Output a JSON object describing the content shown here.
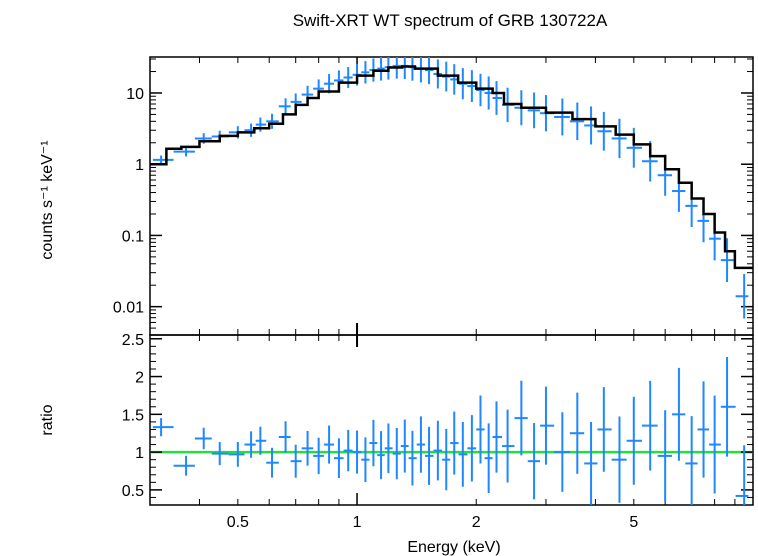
{
  "chart_data": [
    {
      "panel": "spectrum",
      "type": "scatter",
      "title": "Swift-XRT WT spectrum of GRB 130722A",
      "xlabel": "Energy (keV)",
      "ylabel": "counts s⁻¹ keV⁻¹",
      "xscale": "log",
      "yscale": "log",
      "xlim": [
        0.3,
        10
      ],
      "ylim": [
        0.004,
        32
      ],
      "yticks": [
        0.01,
        0.1,
        1,
        10
      ],
      "ytick_labels": [
        "0.01",
        "0.1",
        "1",
        "10"
      ],
      "series": [
        {
          "name": "data",
          "color": "#1f87ff",
          "style": "error-cross",
          "points": [
            {
              "x": 0.32,
              "y": 1.15
            },
            {
              "x": 0.37,
              "y": 1.5
            },
            {
              "x": 0.41,
              "y": 2.3
            },
            {
              "x": 0.45,
              "y": 2.45
            },
            {
              "x": 0.5,
              "y": 2.8
            },
            {
              "x": 0.54,
              "y": 3.0
            },
            {
              "x": 0.57,
              "y": 3.6
            },
            {
              "x": 0.61,
              "y": 4.0
            },
            {
              "x": 0.66,
              "y": 6.5
            },
            {
              "x": 0.7,
              "y": 7.5
            },
            {
              "x": 0.75,
              "y": 9.5
            },
            {
              "x": 0.8,
              "y": 11.5
            },
            {
              "x": 0.85,
              "y": 13.5
            },
            {
              "x": 0.9,
              "y": 15
            },
            {
              "x": 0.95,
              "y": 16.5
            },
            {
              "x": 1.0,
              "y": 18
            },
            {
              "x": 1.05,
              "y": 19.5
            },
            {
              "x": 1.1,
              "y": 21
            },
            {
              "x": 1.15,
              "y": 22
            },
            {
              "x": 1.2,
              "y": 23
            },
            {
              "x": 1.26,
              "y": 24
            },
            {
              "x": 1.32,
              "y": 24
            },
            {
              "x": 1.38,
              "y": 23
            },
            {
              "x": 1.45,
              "y": 22
            },
            {
              "x": 1.52,
              "y": 21
            },
            {
              "x": 1.6,
              "y": 18.5
            },
            {
              "x": 1.68,
              "y": 17
            },
            {
              "x": 1.76,
              "y": 15.5
            },
            {
              "x": 1.85,
              "y": 13.5
            },
            {
              "x": 1.95,
              "y": 12.5
            },
            {
              "x": 2.05,
              "y": 11
            },
            {
              "x": 2.15,
              "y": 10
            },
            {
              "x": 2.25,
              "y": 8.5
            },
            {
              "x": 2.4,
              "y": 6.8
            },
            {
              "x": 2.6,
              "y": 6.2
            },
            {
              "x": 2.8,
              "y": 5.7
            },
            {
              "x": 3.0,
              "y": 5.2
            },
            {
              "x": 3.3,
              "y": 4.6
            },
            {
              "x": 3.6,
              "y": 4.0
            },
            {
              "x": 3.9,
              "y": 3.5
            },
            {
              "x": 4.2,
              "y": 2.9
            },
            {
              "x": 4.6,
              "y": 2.3
            },
            {
              "x": 5.0,
              "y": 1.7
            },
            {
              "x": 5.5,
              "y": 1.1
            },
            {
              "x": 6.0,
              "y": 0.7
            },
            {
              "x": 6.5,
              "y": 0.42
            },
            {
              "x": 7.0,
              "y": 0.26
            },
            {
              "x": 7.5,
              "y": 0.16
            },
            {
              "x": 8.0,
              "y": 0.09
            },
            {
              "x": 8.6,
              "y": 0.045
            },
            {
              "x": 9.5,
              "y": 0.014
            }
          ]
        },
        {
          "name": "model",
          "color": "#000000",
          "style": "step-line",
          "x": [
            0.3,
            0.33,
            0.36,
            0.4,
            0.45,
            0.5,
            0.55,
            0.6,
            0.65,
            0.7,
            0.75,
            0.8,
            0.9,
            1.0,
            1.1,
            1.2,
            1.3,
            1.4,
            1.6,
            1.8,
            2.0,
            2.2,
            2.35,
            2.6,
            3.0,
            3.5,
            4.0,
            4.5,
            5.0,
            5.5,
            6.0,
            6.5,
            7.0,
            7.5,
            8.0,
            8.5,
            9.0,
            10.0
          ],
          "y": [
            1.0,
            1.65,
            1.75,
            2.1,
            2.5,
            2.8,
            3.2,
            3.7,
            5.0,
            6.8,
            8.5,
            10.5,
            14.0,
            17.5,
            20.5,
            22.8,
            23.5,
            22.0,
            17.5,
            14.0,
            11.5,
            10.0,
            7.0,
            6.2,
            5.3,
            4.3,
            3.4,
            2.6,
            1.9,
            1.3,
            0.85,
            0.55,
            0.33,
            0.2,
            0.11,
            0.06,
            0.035,
            0.035
          ]
        }
      ]
    },
    {
      "panel": "ratio",
      "type": "scatter",
      "xlabel": "Energy (keV)",
      "ylabel": "ratio",
      "xscale": "log",
      "xlim": [
        0.3,
        10
      ],
      "ylim": [
        0.3,
        2.55
      ],
      "yticks": [
        0.5,
        1,
        1.5,
        2,
        2.5
      ],
      "ytick_labels": [
        "0.5",
        "1",
        "1.5",
        "2",
        "2.5"
      ],
      "xticks": [
        0.5,
        1,
        2,
        5
      ],
      "xtick_labels": [
        "0.5",
        "1",
        "2",
        "5"
      ],
      "reference_line": {
        "y": 1,
        "color": "#22e03a"
      },
      "series": [
        {
          "name": "ratio",
          "color": "#1f87ff",
          "style": "error-cross",
          "points": [
            {
              "x": 0.32,
              "y": 1.33
            },
            {
              "x": 0.37,
              "y": 0.82
            },
            {
              "x": 0.41,
              "y": 1.18
            },
            {
              "x": 0.45,
              "y": 0.98
            },
            {
              "x": 0.5,
              "y": 0.97
            },
            {
              "x": 0.54,
              "y": 1.1
            },
            {
              "x": 0.57,
              "y": 1.15
            },
            {
              "x": 0.61,
              "y": 0.86
            },
            {
              "x": 0.66,
              "y": 1.2
            },
            {
              "x": 0.7,
              "y": 0.88
            },
            {
              "x": 0.75,
              "y": 1.05
            },
            {
              "x": 0.8,
              "y": 0.95
            },
            {
              "x": 0.85,
              "y": 1.1
            },
            {
              "x": 0.9,
              "y": 0.92
            },
            {
              "x": 0.95,
              "y": 1.02
            },
            {
              "x": 1.0,
              "y": 1.0
            },
            {
              "x": 1.05,
              "y": 0.9
            },
            {
              "x": 1.1,
              "y": 1.12
            },
            {
              "x": 1.15,
              "y": 0.96
            },
            {
              "x": 1.2,
              "y": 1.05
            },
            {
              "x": 1.26,
              "y": 0.98
            },
            {
              "x": 1.32,
              "y": 1.08
            },
            {
              "x": 1.38,
              "y": 0.92
            },
            {
              "x": 1.45,
              "y": 1.1
            },
            {
              "x": 1.52,
              "y": 0.95
            },
            {
              "x": 1.6,
              "y": 1.02
            },
            {
              "x": 1.68,
              "y": 0.9
            },
            {
              "x": 1.76,
              "y": 1.12
            },
            {
              "x": 1.85,
              "y": 0.97
            },
            {
              "x": 1.95,
              "y": 1.05
            },
            {
              "x": 2.05,
              "y": 1.3
            },
            {
              "x": 2.15,
              "y": 0.92
            },
            {
              "x": 2.25,
              "y": 1.2
            },
            {
              "x": 2.4,
              "y": 1.08
            },
            {
              "x": 2.6,
              "y": 1.45
            },
            {
              "x": 2.8,
              "y": 0.88
            },
            {
              "x": 3.0,
              "y": 1.35
            },
            {
              "x": 3.3,
              "y": 1.0
            },
            {
              "x": 3.6,
              "y": 1.25
            },
            {
              "x": 3.9,
              "y": 0.85
            },
            {
              "x": 4.2,
              "y": 1.3
            },
            {
              "x": 4.6,
              "y": 0.9
            },
            {
              "x": 5.0,
              "y": 1.15
            },
            {
              "x": 5.5,
              "y": 1.35
            },
            {
              "x": 6.0,
              "y": 0.95
            },
            {
              "x": 6.5,
              "y": 1.5
            },
            {
              "x": 7.0,
              "y": 0.85
            },
            {
              "x": 7.5,
              "y": 1.3
            },
            {
              "x": 8.0,
              "y": 1.1
            },
            {
              "x": 8.6,
              "y": 1.6
            },
            {
              "x": 9.5,
              "y": 0.42
            }
          ]
        }
      ]
    }
  ]
}
